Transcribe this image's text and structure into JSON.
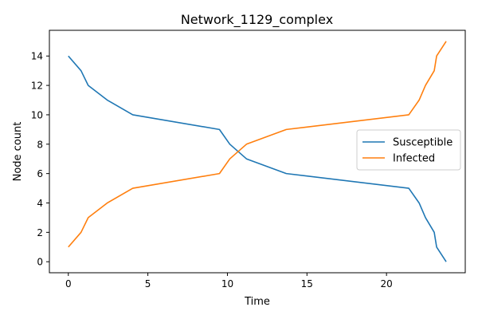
{
  "chart_data": {
    "type": "line",
    "title": "Network_1129_complex",
    "xlabel": "Time",
    "ylabel": "Node count",
    "xlim": [
      -1.19,
      24.95
    ],
    "ylim": [
      -0.75,
      15.75
    ],
    "xticks": [
      0,
      5,
      10,
      15,
      20
    ],
    "yticks": [
      0,
      2,
      4,
      6,
      8,
      10,
      12,
      14
    ],
    "grid": false,
    "legend_position": "center-right",
    "series": [
      {
        "name": "Susceptible",
        "color": "#1f77b4",
        "x": [
          0,
          0.8,
          1.25,
          2.45,
          4.05,
          9.5,
          10.15,
          11.2,
          13.7,
          21.4,
          22.05,
          22.45,
          23.0,
          23.15,
          23.75
        ],
        "y": [
          14,
          13,
          12,
          11,
          10,
          9,
          8,
          7,
          6,
          5,
          4,
          3,
          2,
          1,
          0
        ]
      },
      {
        "name": "Infected",
        "color": "#ff7f0e",
        "x": [
          0,
          0.8,
          1.25,
          2.45,
          4.05,
          9.5,
          10.15,
          11.2,
          13.7,
          21.4,
          22.05,
          22.45,
          23.0,
          23.15,
          23.75
        ],
        "y": [
          1,
          2,
          3,
          4,
          5,
          6,
          7,
          8,
          9,
          10,
          11,
          12,
          13,
          14,
          15
        ]
      }
    ]
  }
}
